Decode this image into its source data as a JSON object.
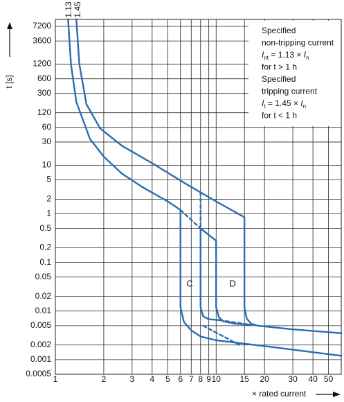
{
  "chart_data": {
    "type": "line",
    "xlabel": "× rated current",
    "ylabel": "t [s]",
    "xscale": "log",
    "yscale": "log",
    "grid": true,
    "xlim": [
      1,
      60
    ],
    "ylim": [
      0.0005,
      10000
    ],
    "xticks": [
      1,
      2,
      3,
      4,
      5,
      6,
      7,
      8,
      9,
      10,
      15,
      20,
      30,
      40,
      50
    ],
    "yticks": [
      7200,
      3600,
      1200,
      600,
      300,
      120,
      60,
      30,
      10,
      5,
      2,
      1,
      0.5,
      0.2,
      0.1,
      0.05,
      0.02,
      0.01,
      0.005,
      0.002,
      0.001,
      0.0005
    ],
    "series": [
      {
        "color": "#2a6cb3",
        "dashed": false,
        "x": [
          1.2,
          1.25,
          1.35,
          1.64,
          2,
          2.6,
          3.5,
          5,
          6,
          6,
          6.3,
          7,
          8,
          10,
          20,
          60
        ],
        "values": [
          10000,
          1200,
          200,
          35,
          15,
          6.7,
          3.5,
          1.8,
          1.2,
          0.012,
          0.006,
          0.004,
          0.003,
          0.0025,
          0.0019,
          0.0012
        ]
      },
      {
        "color": "#2a6cb3",
        "dashed": false,
        "x": [
          1.35,
          1.41,
          1.56,
          1.9,
          2.6,
          4,
          6.6,
          10,
          15,
          15,
          15.5,
          16.5,
          18,
          30,
          60
        ],
        "values": [
          10000,
          1200,
          180,
          57,
          25,
          11,
          4,
          1.8,
          0.85,
          0.012,
          0.007,
          0.0055,
          0.005,
          0.0042,
          0.0035
        ]
      },
      {
        "color": "#2a6cb3",
        "dashed": false,
        "x": [
          10,
          8,
          8,
          8.3,
          9,
          10.5
        ],
        "values": [
          0.28,
          0.5,
          0.012,
          0.0078,
          0.0068,
          0.0065
        ]
      },
      {
        "color": "#2a6cb3",
        "dashed": false,
        "x": [
          10,
          10,
          10.4,
          11,
          13,
          16.5
        ],
        "values": [
          0.28,
          0.012,
          0.0075,
          0.0062,
          0.0055,
          0.0052
        ]
      },
      {
        "color": "#2a6cb3",
        "dashed": true,
        "x": [
          6,
          8
        ],
        "values": [
          1.2,
          0.5
        ]
      },
      {
        "color": "#2a6cb3",
        "dashed": true,
        "x": [
          8,
          8
        ],
        "values": [
          2.8,
          0.5
        ]
      },
      {
        "color": "#2a6cb3",
        "dashed": true,
        "x": [
          10.5,
          16.5
        ],
        "values": [
          0.0065,
          0.0052
        ]
      },
      {
        "color": "#2a6cb3",
        "dashed": true,
        "x": [
          8.3,
          14
        ],
        "values": [
          0.005,
          0.002
        ]
      }
    ],
    "annotations": [
      "1.13",
      "1.45",
      "C",
      "D"
    ],
    "note": [
      [
        {
          "text": "Specified"
        }
      ],
      [
        {
          "text": "non-tripping current"
        }
      ],
      [
        {
          "text": "I",
          "style": "italic"
        },
        {
          "text": "nt",
          "style": "sub"
        },
        {
          "text": " = 1.13 × "
        },
        {
          "text": "I",
          "style": "italic"
        },
        {
          "text": "n",
          "style": "sub"
        }
      ],
      [
        {
          "text": "for t > 1 h"
        }
      ],
      [
        {
          "text": "Specified"
        }
      ],
      [
        {
          "text": "tripping current"
        }
      ],
      [
        {
          "text": "I",
          "style": "italic"
        },
        {
          "text": "t",
          "style": "sub"
        },
        {
          "text": " = 1.45 × "
        },
        {
          "text": "I",
          "style": "italic"
        },
        {
          "text": "n",
          "style": "sub"
        }
      ],
      [
        {
          "text": "for t < 1 h"
        }
      ]
    ]
  }
}
